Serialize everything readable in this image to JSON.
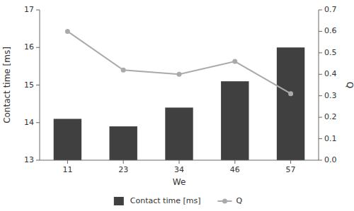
{
  "chart_data": {
    "type": "bar",
    "xlabel": "We",
    "ylabel": "Contact time [ms]",
    "y2label": "Q",
    "categories": [
      11,
      23,
      34,
      46,
      57
    ],
    "series": [
      {
        "name": "Contact time [ms]",
        "type": "bar",
        "color": "#404040",
        "values": [
          14.1,
          13.9,
          14.4,
          15.1,
          16.0
        ]
      },
      {
        "name": "Q",
        "type": "line",
        "axis": "y2",
        "color": "#aaaaaa",
        "marker": "circle",
        "values": [
          0.6,
          0.42,
          0.4,
          0.46,
          0.31
        ]
      }
    ],
    "ylim": [
      13,
      17
    ],
    "yticks": [
      13,
      14,
      15,
      16,
      17
    ],
    "y2lim": [
      0.0,
      0.7
    ],
    "y2ticks": [
      {
        "value": 0.0,
        "label": "0.0"
      },
      0.1,
      0.2,
      0.3,
      0.4,
      0.5,
      0.6,
      0.7
    ],
    "grid": false,
    "legend": "bottom"
  }
}
